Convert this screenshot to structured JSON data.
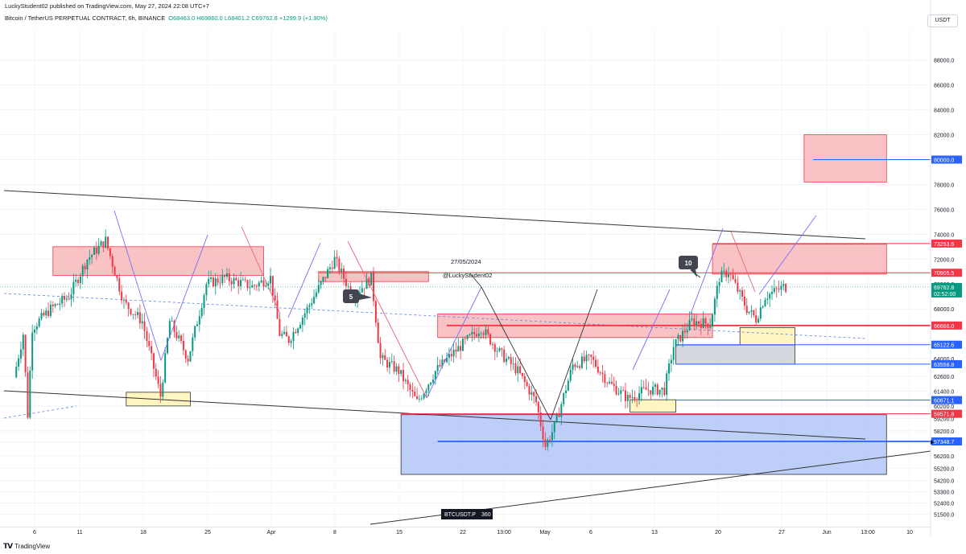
{
  "header": {
    "published": "LuckyStudent02 published on TradingView.com, May 27, 2024 22:08 UTC+7",
    "symbol": "Bitcoin / TetherUS PERPETUAL CONTRACT, 6h, BINANCE",
    "ohlc": "O68463.0 H69860.0 L68401.2 C69762.8 +1299.9 (+1.90%)",
    "currency": "USDT"
  },
  "footer": {
    "brand": "TradingView",
    "logo_icon": "tradingview-logo-icon"
  },
  "colors": {
    "up": "#089981",
    "down": "#f23645",
    "zone_red": "#f8b4b8",
    "zone_yellow": "#fff3b0",
    "zone_blue": "#a7bdf7",
    "zone_gray": "#d1d4dc",
    "line_blue": "#2962ff",
    "line_red": "#f23645"
  },
  "chart_data": {
    "type": "candlestick",
    "interval": "6h",
    "ylim": [
      50500,
      90500
    ],
    "y_ticks": [
      51500,
      52400,
      53300,
      54200,
      55200,
      56200,
      57300,
      58200,
      59200,
      60200,
      61400,
      62600,
      64000,
      65300,
      66600,
      68000,
      70000,
      72000,
      74000,
      76000,
      78000,
      80000,
      82000,
      84000,
      86000,
      88000
    ],
    "x_axis_labels": [
      "6",
      "11",
      "18",
      "25",
      "Apr",
      "8",
      "15",
      "22",
      "13:00",
      "May",
      "6",
      "13",
      "20",
      "27",
      "Jun",
      "13:00",
      "10"
    ],
    "price_anchors": [
      {
        "date": "2024-03-04",
        "price": 62500
      },
      {
        "date": "2024-03-05",
        "price": 66000
      },
      {
        "date": "2024-03-05T12",
        "price": 59500
      },
      {
        "date": "2024-03-06",
        "price": 66500
      },
      {
        "date": "2024-03-08",
        "price": 68000
      },
      {
        "date": "2024-03-10",
        "price": 69000
      },
      {
        "date": "2024-03-12",
        "price": 72000
      },
      {
        "date": "2024-03-14",
        "price": 73500
      },
      {
        "date": "2024-03-16",
        "price": 68500
      },
      {
        "date": "2024-03-18",
        "price": 67000
      },
      {
        "date": "2024-03-20",
        "price": 61000
      },
      {
        "date": "2024-03-21",
        "price": 67000
      },
      {
        "date": "2024-03-23",
        "price": 64000
      },
      {
        "date": "2024-03-25",
        "price": 70000
      },
      {
        "date": "2024-03-27",
        "price": 70500
      },
      {
        "date": "2024-03-30",
        "price": 69800
      },
      {
        "date": "2024-04-01",
        "price": 70500
      },
      {
        "date": "2024-04-02",
        "price": 66000
      },
      {
        "date": "2024-04-03",
        "price": 65500
      },
      {
        "date": "2024-04-05",
        "price": 68000
      },
      {
        "date": "2024-04-08",
        "price": 72000
      },
      {
        "date": "2024-04-10",
        "price": 69000
      },
      {
        "date": "2024-04-12",
        "price": 70500
      },
      {
        "date": "2024-04-13",
        "price": 64000
      },
      {
        "date": "2024-04-15",
        "price": 63000
      },
      {
        "date": "2024-04-17",
        "price": 60500
      },
      {
        "date": "2024-04-19",
        "price": 63000
      },
      {
        "date": "2024-04-21",
        "price": 64500
      },
      {
        "date": "2024-04-24",
        "price": 66500
      },
      {
        "date": "2024-04-26",
        "price": 64500
      },
      {
        "date": "2024-04-28",
        "price": 63000
      },
      {
        "date": "2024-04-30",
        "price": 60500
      },
      {
        "date": "2024-05-01",
        "price": 57000
      },
      {
        "date": "2024-05-02",
        "price": 58500
      },
      {
        "date": "2024-05-04",
        "price": 63500
      },
      {
        "date": "2024-05-06",
        "price": 64000
      },
      {
        "date": "2024-05-08",
        "price": 62000
      },
      {
        "date": "2024-05-10",
        "price": 60800
      },
      {
        "date": "2024-05-12",
        "price": 61500
      },
      {
        "date": "2024-05-14",
        "price": 61500
      },
      {
        "date": "2024-05-15",
        "price": 65000
      },
      {
        "date": "2024-05-17",
        "price": 67000
      },
      {
        "date": "2024-05-19",
        "price": 66800
      },
      {
        "date": "2024-05-20",
        "price": 70500
      },
      {
        "date": "2024-05-21",
        "price": 71000
      },
      {
        "date": "2024-05-23",
        "price": 68000
      },
      {
        "date": "2024-05-24",
        "price": 67200
      },
      {
        "date": "2024-05-25",
        "price": 69000
      },
      {
        "date": "2024-05-27",
        "price": 69762.8
      }
    ],
    "zones": [
      {
        "kind": "supply",
        "from": "2024-03-08",
        "to": "2024-03-31",
        "top": 73000,
        "bottom": 70700
      },
      {
        "kind": "supply",
        "from": "2024-04-06",
        "to": "2024-04-18",
        "top": 71000,
        "bottom": 70200
      },
      {
        "kind": "supply",
        "from": "2024-04-19",
        "to": "2024-05-19",
        "top": 67600,
        "bottom": 65700
      },
      {
        "kind": "supply",
        "from": "2024-05-19",
        "to": "2024-06-07",
        "top": 73200,
        "bottom": 70800
      },
      {
        "kind": "supply",
        "from": "2024-05-29",
        "to": "2024-06-07",
        "top": 82000,
        "bottom": 78200
      },
      {
        "kind": "demand",
        "from": "2024-03-16",
        "to": "2024-03-23",
        "top": 61300,
        "bottom": 60200
      },
      {
        "kind": "demand",
        "from": "2024-05-10",
        "to": "2024-05-15",
        "top": 60700,
        "bottom": 59700
      },
      {
        "kind": "demand",
        "from": "2024-05-22",
        "to": "2024-05-28",
        "top": 66500,
        "bottom": 65100
      },
      {
        "kind": "demand-gray",
        "from": "2024-05-15",
        "to": "2024-05-28",
        "top": 65100,
        "bottom": 63560
      },
      {
        "kind": "demand-blue",
        "from": "2024-04-15",
        "to": "2024-06-07",
        "top": 59500,
        "bottom": 54700
      }
    ],
    "levels": [
      {
        "price": 80000.0,
        "label": "80000.0",
        "color": "#2962ff",
        "from": "2024-05-30"
      },
      {
        "price": 73253.6,
        "label": "73253.6",
        "color": "#f23645",
        "from": "2024-05-19"
      },
      {
        "price": 70905.5,
        "label": "70905.5",
        "color": "#f23645",
        "from": "2024-04-06"
      },
      {
        "price": 69762.8,
        "label": "69762.8",
        "color": "#089981",
        "sublabel": "02:52:00"
      },
      {
        "price": 66666.0,
        "label": "66666.0",
        "color": "#f23645",
        "from": "2024-04-20"
      },
      {
        "price": 65122.6,
        "label": "65122.6",
        "color": "#2962ff",
        "from": "2024-05-15"
      },
      {
        "price": 63558.8,
        "label": "63558.8",
        "color": "#2962ff",
        "from": "2024-05-15"
      },
      {
        "price": 60671.1,
        "label": "60671.1",
        "color": "#2962ff",
        "from": "2024-05-15"
      },
      {
        "price": 59571.8,
        "label": "59571.8",
        "color": "#f23645",
        "from": "2024-04-15"
      },
      {
        "price": 57348.7,
        "label": "57348.7",
        "color": "#2962ff",
        "from": "2024-04-19"
      }
    ],
    "annotations": [
      {
        "text": "27/05/2024",
        "kind": "label"
      },
      {
        "text": "@LuckyStudent02",
        "kind": "label"
      },
      {
        "text": "5",
        "kind": "badge"
      },
      {
        "text": "10",
        "kind": "badge"
      },
      {
        "text": "BTCUSDT.P",
        "value": "360",
        "kind": "tag"
      }
    ]
  }
}
